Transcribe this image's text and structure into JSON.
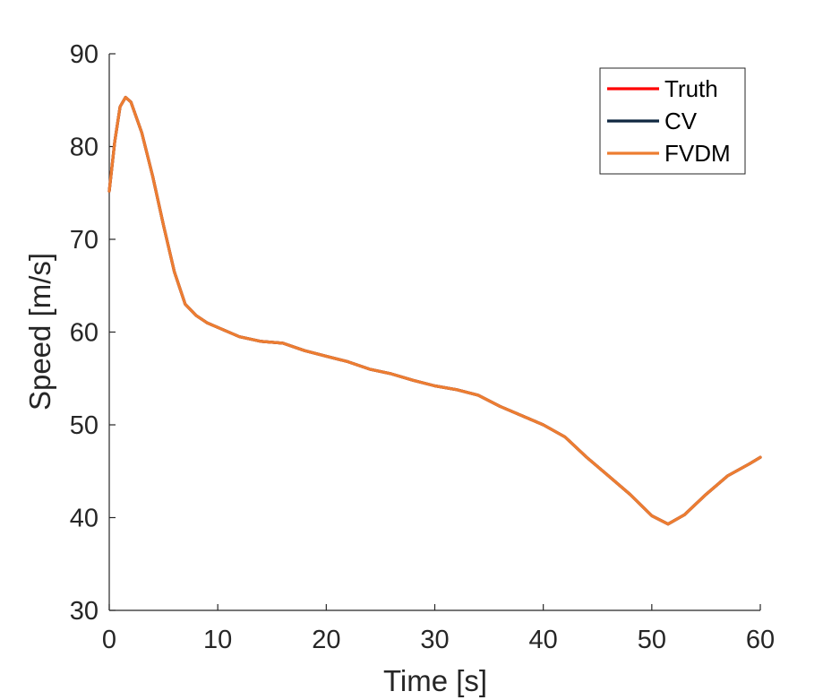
{
  "chart_data": {
    "type": "line",
    "title": "",
    "xlabel": "Time [s]",
    "ylabel": "Speed [m/s]",
    "xlim": [
      0,
      60
    ],
    "ylim": [
      30,
      90
    ],
    "xticks": [
      0,
      10,
      20,
      30,
      40,
      50,
      60
    ],
    "yticks": [
      30,
      40,
      50,
      60,
      70,
      80,
      90
    ],
    "grid": false,
    "legend_position": "top-right",
    "x": [
      0,
      0.5,
      1.0,
      1.5,
      2.0,
      3.0,
      4.0,
      5.0,
      6.0,
      7.0,
      8.0,
      9.0,
      10.0,
      12.0,
      14.0,
      16.0,
      18.0,
      20.0,
      22.0,
      24.0,
      26.0,
      28.0,
      30.0,
      32.0,
      34.0,
      36.0,
      38.0,
      40.0,
      42.0,
      44.0,
      46.0,
      48.0,
      50.0,
      51.5,
      53.0,
      55.0,
      57.0,
      59.0,
      60.0
    ],
    "series": [
      {
        "name": "Truth",
        "color": "#ff0000",
        "values": [
          75.2,
          80.5,
          84.3,
          85.3,
          84.8,
          81.5,
          76.8,
          71.5,
          66.5,
          63.0,
          61.8,
          61.0,
          60.5,
          59.5,
          59.0,
          58.8,
          58.0,
          57.4,
          56.8,
          56.0,
          55.5,
          54.8,
          54.2,
          53.8,
          53.2,
          52.0,
          51.0,
          50.0,
          48.7,
          46.5,
          44.5,
          42.5,
          40.2,
          39.3,
          40.3,
          42.5,
          44.5,
          45.8,
          46.5
        ]
      },
      {
        "name": "CV",
        "color": "#0f2740",
        "values": [
          75.2,
          80.5,
          84.3,
          85.3,
          84.8,
          81.5,
          76.8,
          71.5,
          66.5,
          63.0,
          61.8,
          61.0,
          60.5,
          59.5,
          59.0,
          58.8,
          58.0,
          57.4,
          56.8,
          56.0,
          55.5,
          54.8,
          54.2,
          53.8,
          53.2,
          52.0,
          51.0,
          50.0,
          48.7,
          46.5,
          44.5,
          42.5,
          40.2,
          39.3,
          40.3,
          42.5,
          44.5,
          45.8,
          46.5
        ]
      },
      {
        "name": "FVDM",
        "color": "#ed7d31",
        "values": [
          75.2,
          80.5,
          84.3,
          85.3,
          84.8,
          81.5,
          76.8,
          71.5,
          66.5,
          63.0,
          61.8,
          61.0,
          60.5,
          59.5,
          59.0,
          58.8,
          58.0,
          57.4,
          56.8,
          56.0,
          55.5,
          54.8,
          54.2,
          53.8,
          53.2,
          52.0,
          51.0,
          50.0,
          48.7,
          46.5,
          44.5,
          42.5,
          40.2,
          39.3,
          40.3,
          42.5,
          44.5,
          45.8,
          46.5
        ]
      }
    ]
  }
}
